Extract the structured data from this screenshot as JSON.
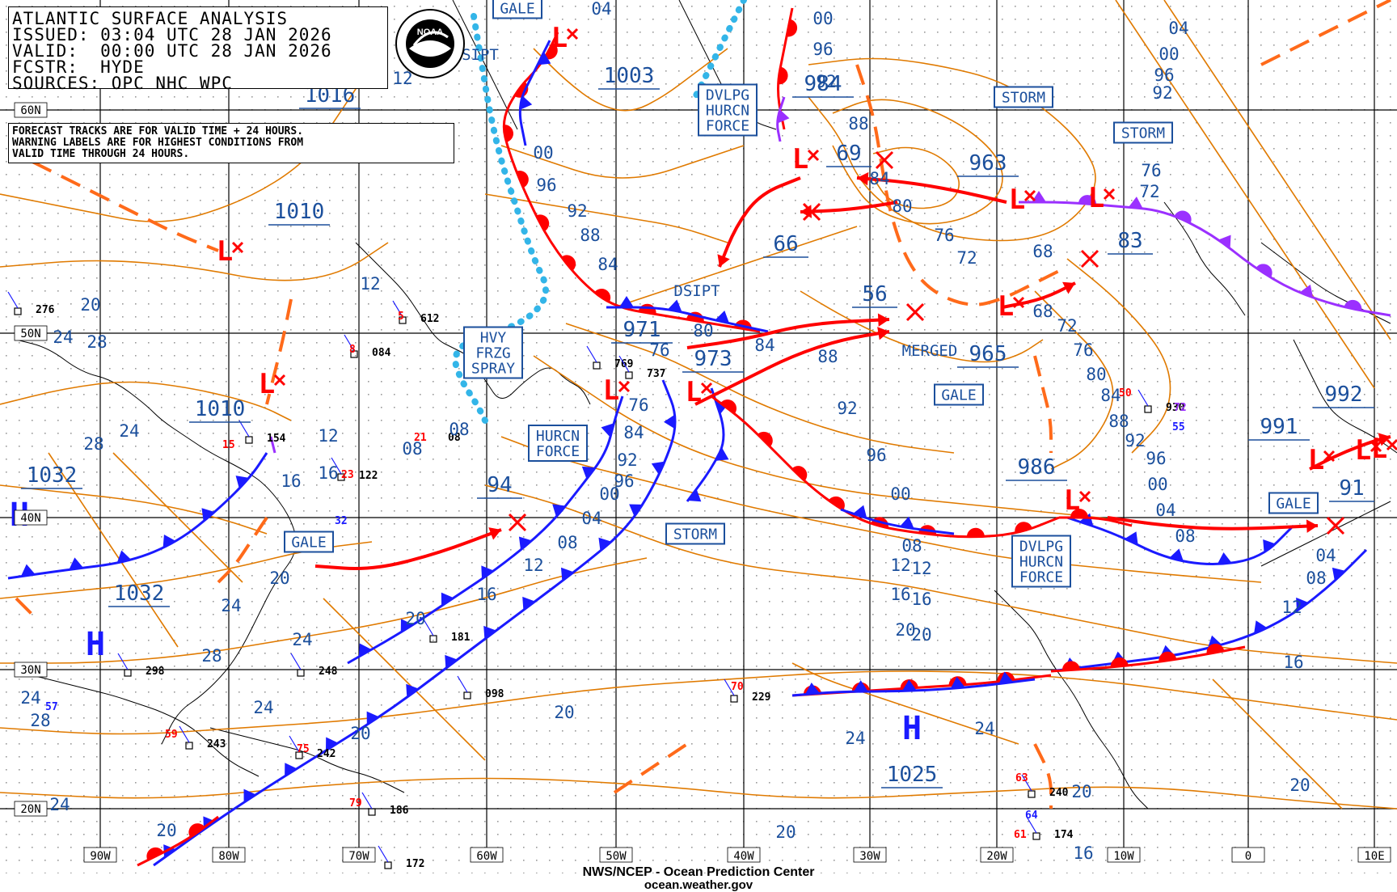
{
  "header": {
    "title": "ATLANTIC SURFACE ANALYSIS",
    "issued": "ISSUED: 03:04 UTC 28 JAN 2026",
    "valid": "VALID:  00:00 UTC 28 JAN 2026",
    "forecaster": "FCSTR:  HYDE",
    "sources": "SOURCES: OPC NHC WPC",
    "note": [
      "FORECAST TRACKS ARE FOR VALID TIME + 24 HOURS.",
      "WARNING LABELS ARE FOR HIGHEST CONDITIONS FROM",
      "VALID TIME THROUGH 24 HOURS."
    ],
    "logo_text": "NOAA"
  },
  "footer": {
    "line1": "NWS/NCEP - Ocean Prediction Center",
    "line2": "ocean.weather.gov"
  },
  "colors": {
    "isobar": "#e07a00",
    "label": "#1b4f9c",
    "cold_front": "#1a1aff",
    "warm_front": "#ff0000",
    "occluded_front": "#9b30ff",
    "trough": "#ff6a1a",
    "ice_edge": "#33b5e8",
    "grid": "#000000"
  },
  "graticule": {
    "lon_labels": [
      "90W",
      "80W",
      "70W",
      "60W",
      "50W",
      "40W",
      "30W",
      "20W",
      "10W",
      "0",
      "10E"
    ],
    "lat_labels": [
      "60N",
      "50N",
      "40N",
      "30N",
      "20N"
    ]
  },
  "pressure_centers": [
    {
      "type": "L",
      "value": "1010"
    },
    {
      "type": "L",
      "value": "1010"
    },
    {
      "type": "L",
      "value": "1003"
    },
    {
      "type": "L",
      "value": "984"
    },
    {
      "type": "L",
      "value": "963"
    },
    {
      "type": "L",
      "value": "971"
    },
    {
      "type": "L",
      "value": "973"
    },
    {
      "type": "L",
      "value": "965"
    },
    {
      "type": "L",
      "value": "986"
    },
    {
      "type": "L",
      "value": "991"
    },
    {
      "type": "L",
      "value": "992"
    },
    {
      "type": "L",
      "value": "1016"
    },
    {
      "type": "H",
      "value": "1032"
    },
    {
      "type": "H",
      "value": "1032"
    },
    {
      "type": "H",
      "value": "1025"
    }
  ],
  "forecast_values": [
    "69",
    "66",
    "56",
    "83",
    "94",
    "91"
  ],
  "warning_labels": [
    {
      "lines": [
        "GALE"
      ]
    },
    {
      "lines": [
        "DVLPG",
        "HURCN",
        "FORCE"
      ]
    },
    {
      "lines": [
        "STORM"
      ]
    },
    {
      "lines": [
        "STORM"
      ]
    },
    {
      "lines": [
        "HVY",
        "FRZG",
        "SPRAY"
      ]
    },
    {
      "lines": [
        "HURCN",
        "FORCE"
      ]
    },
    {
      "lines": [
        "STORM"
      ]
    },
    {
      "lines": [
        "GALE"
      ]
    },
    {
      "lines": [
        "GALE"
      ]
    },
    {
      "lines": [
        "DVLPG",
        "HURCN",
        "FORCE"
      ]
    },
    {
      "lines": [
        "GALE"
      ]
    }
  ],
  "annotations": [
    "SIPT",
    "DSIPT",
    "MERGED"
  ],
  "isobar_labels": [
    "04",
    "00",
    "96",
    "92",
    "88",
    "84",
    "80",
    "76",
    "72",
    "68",
    "12",
    "16",
    "20",
    "24",
    "28",
    "08"
  ],
  "station_values": [
    "276",
    "612",
    "084",
    "154",
    "122",
    "769",
    "737",
    "181",
    "298",
    "248",
    "098",
    "243",
    "242",
    "186",
    "172",
    "229",
    "930",
    "240",
    "174",
    "5",
    "8",
    "15",
    "23",
    "21",
    "59",
    "75",
    "79",
    "70",
    "50",
    "63",
    "61",
    "55",
    "72",
    "32",
    "57",
    "64",
    "08"
  ]
}
